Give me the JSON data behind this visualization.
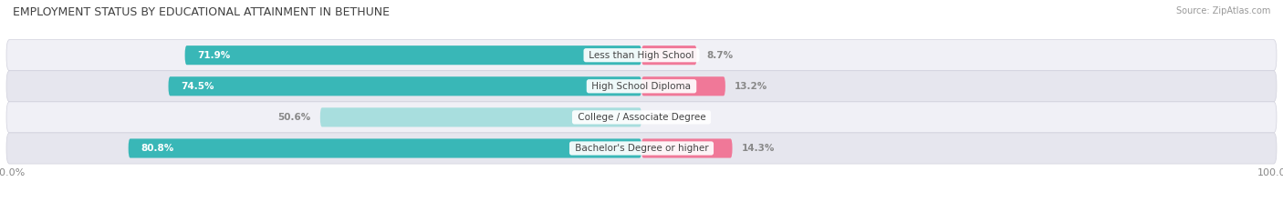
{
  "title": "EMPLOYMENT STATUS BY EDUCATIONAL ATTAINMENT IN BETHUNE",
  "source": "Source: ZipAtlas.com",
  "categories": [
    "Less than High School",
    "High School Diploma",
    "College / Associate Degree",
    "Bachelor's Degree or higher"
  ],
  "labor_force": [
    71.9,
    74.5,
    50.6,
    80.8
  ],
  "unemployed": [
    8.7,
    13.2,
    0.0,
    14.3
  ],
  "labor_force_color": "#39b7b7",
  "unemployed_color": "#f07898",
  "labor_force_light_color": "#a8dede",
  "unemployed_light_color": "#f8c0cc",
  "row_bg_even": "#f0f0f6",
  "row_bg_odd": "#e6e6ee",
  "row_border_color": "#d0d0dc",
  "label_white": "#ffffff",
  "label_gray": "#888888",
  "axis_label_color": "#888888",
  "title_color": "#404040",
  "source_color": "#999999",
  "legend_teal": "#39b7b7",
  "legend_pink": "#f07898",
  "figsize": [
    14.06,
    2.33
  ],
  "dpi": 100
}
